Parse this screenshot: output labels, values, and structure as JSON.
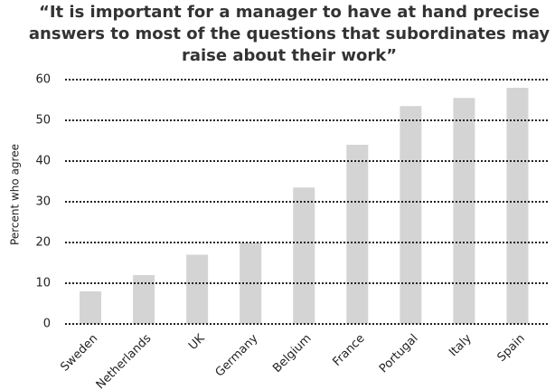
{
  "chart_data": {
    "type": "bar",
    "title": [
      "“It is important for a manager to have at hand precise",
      "answers to most of the questions that subordinates may",
      "raise about their work”"
    ],
    "y_label": "Percent who agree",
    "categories": [
      "Sweden",
      "Netherlands",
      "UK",
      "Germany",
      "Belgium",
      "France",
      "Portugal",
      "Italy",
      "Spain"
    ],
    "values": [
      8,
      12,
      17,
      20,
      33.5,
      44,
      53.5,
      55.5,
      58
    ],
    "color": "#d4d4d4",
    "ylim": [
      0,
      60
    ],
    "yticks": [
      0,
      10,
      20,
      30,
      40,
      50,
      60
    ],
    "grid": true
  }
}
